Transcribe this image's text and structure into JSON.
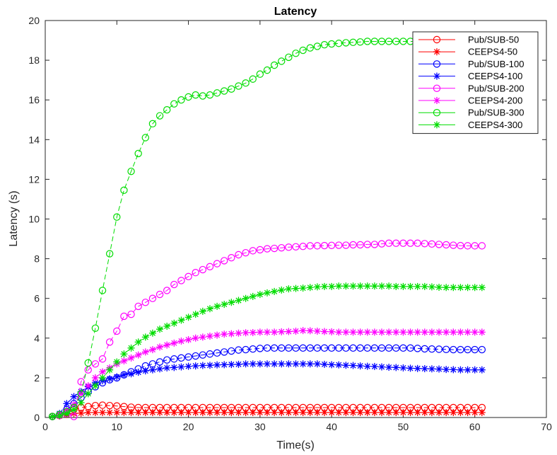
{
  "chart_data": {
    "type": "line",
    "title": "Latency",
    "xlabel": "Time(s)",
    "ylabel": "Latency (s)",
    "xlim": [
      0,
      70
    ],
    "ylim": [
      0,
      20
    ],
    "xticks": [
      "0",
      "10",
      "20",
      "30",
      "40",
      "50",
      "60",
      "70"
    ],
    "yticks": [
      "0",
      "2",
      "4",
      "6",
      "8",
      "10",
      "12",
      "14",
      "16",
      "18",
      "20"
    ],
    "grid": false,
    "legend_position": "top-right",
    "x": [
      1,
      2,
      3,
      4,
      5,
      6,
      7,
      8,
      9,
      10,
      11,
      12,
      13,
      14,
      15,
      16,
      17,
      18,
      19,
      20,
      21,
      22,
      23,
      24,
      25,
      26,
      27,
      28,
      29,
      30,
      31,
      32,
      33,
      34,
      35,
      36,
      37,
      38,
      39,
      40,
      41,
      42,
      43,
      44,
      45,
      46,
      47,
      48,
      49,
      50,
      51,
      52,
      53,
      54,
      55,
      56,
      57,
      58,
      59,
      60,
      61
    ],
    "series": [
      {
        "name": "Pub/SUB-50",
        "color": "#ff0000",
        "marker": "circle",
        "line": "dashed",
        "values": [
          0.05,
          0.1,
          0.25,
          0.4,
          0.5,
          0.55,
          0.6,
          0.62,
          0.6,
          0.58,
          0.55,
          0.52,
          0.5,
          0.5,
          0.5,
          0.5,
          0.5,
          0.5,
          0.5,
          0.5,
          0.5,
          0.5,
          0.5,
          0.5,
          0.5,
          0.5,
          0.5,
          0.5,
          0.5,
          0.5,
          0.5,
          0.5,
          0.5,
          0.5,
          0.5,
          0.5,
          0.5,
          0.5,
          0.5,
          0.5,
          0.5,
          0.5,
          0.5,
          0.5,
          0.5,
          0.5,
          0.5,
          0.5,
          0.5,
          0.5,
          0.5,
          0.5,
          0.5,
          0.5,
          0.5,
          0.5,
          0.5,
          0.5,
          0.5,
          0.5,
          0.5
        ]
      },
      {
        "name": "CEEPS4-50",
        "color": "#ff0000",
        "marker": "asterisk",
        "line": "dashed",
        "values": [
          0.05,
          0.08,
          0.15,
          0.2,
          0.22,
          0.25,
          0.25,
          0.25,
          0.25,
          0.25,
          0.25,
          0.25,
          0.25,
          0.25,
          0.25,
          0.25,
          0.25,
          0.25,
          0.25,
          0.25,
          0.25,
          0.25,
          0.25,
          0.25,
          0.25,
          0.25,
          0.25,
          0.25,
          0.25,
          0.25,
          0.25,
          0.25,
          0.25,
          0.25,
          0.25,
          0.25,
          0.25,
          0.25,
          0.25,
          0.25,
          0.25,
          0.25,
          0.25,
          0.25,
          0.25,
          0.25,
          0.25,
          0.25,
          0.25,
          0.25,
          0.25,
          0.25,
          0.25,
          0.25,
          0.25,
          0.25,
          0.25,
          0.25,
          0.25,
          0.25,
          0.25
        ]
      },
      {
        "name": "Pub/SUB-100",
        "color": "#0000ff",
        "marker": "circle",
        "line": "dashed",
        "values": [
          0.05,
          0.15,
          0.4,
          0.7,
          1.0,
          1.3,
          1.55,
          1.75,
          1.9,
          2.0,
          2.15,
          2.3,
          2.45,
          2.6,
          2.7,
          2.8,
          2.9,
          2.95,
          3.0,
          3.05,
          3.1,
          3.15,
          3.2,
          3.25,
          3.3,
          3.35,
          3.4,
          3.42,
          3.45,
          3.48,
          3.5,
          3.5,
          3.5,
          3.5,
          3.5,
          3.5,
          3.5,
          3.5,
          3.5,
          3.5,
          3.5,
          3.5,
          3.5,
          3.5,
          3.5,
          3.5,
          3.5,
          3.5,
          3.5,
          3.5,
          3.5,
          3.48,
          3.46,
          3.45,
          3.44,
          3.43,
          3.42,
          3.42,
          3.42,
          3.42,
          3.42
        ]
      },
      {
        "name": "CEEPS4-100",
        "color": "#0000ff",
        "marker": "asterisk",
        "line": "dashed",
        "values": [
          0.05,
          0.2,
          0.7,
          1.05,
          1.3,
          1.55,
          1.75,
          1.85,
          1.95,
          2.05,
          2.15,
          2.2,
          2.28,
          2.35,
          2.4,
          2.45,
          2.5,
          2.52,
          2.55,
          2.58,
          2.6,
          2.62,
          2.63,
          2.65,
          2.66,
          2.67,
          2.68,
          2.7,
          2.7,
          2.7,
          2.7,
          2.7,
          2.7,
          2.7,
          2.7,
          2.7,
          2.7,
          2.7,
          2.68,
          2.66,
          2.65,
          2.63,
          2.62,
          2.6,
          2.58,
          2.57,
          2.55,
          2.53,
          2.52,
          2.5,
          2.48,
          2.47,
          2.46,
          2.45,
          2.44,
          2.42,
          2.41,
          2.4,
          2.4,
          2.4,
          2.4
        ]
      },
      {
        "name": "Pub/SUB-200",
        "color": "#ff00ff",
        "marker": "circle",
        "line": "dashed",
        "values": [
          0.05,
          0.1,
          0.2,
          0.05,
          1.8,
          2.4,
          2.7,
          2.95,
          3.8,
          4.35,
          5.1,
          5.2,
          5.6,
          5.8,
          6.0,
          6.2,
          6.4,
          6.7,
          6.9,
          7.1,
          7.3,
          7.45,
          7.6,
          7.75,
          7.9,
          8.05,
          8.2,
          8.3,
          8.4,
          8.45,
          8.5,
          8.52,
          8.55,
          8.58,
          8.6,
          8.62,
          8.65,
          8.65,
          8.66,
          8.67,
          8.68,
          8.68,
          8.7,
          8.7,
          8.72,
          8.72,
          8.75,
          8.78,
          8.78,
          8.78,
          8.78,
          8.78,
          8.76,
          8.74,
          8.72,
          8.7,
          8.68,
          8.66,
          8.65,
          8.65,
          8.65
        ]
      },
      {
        "name": "CEEPS4-200",
        "color": "#ff00ff",
        "marker": "asterisk",
        "line": "dashed",
        "values": [
          0.05,
          0.15,
          0.35,
          0.65,
          1.2,
          1.6,
          2.0,
          2.3,
          2.5,
          2.7,
          2.85,
          3.0,
          3.15,
          3.3,
          3.42,
          3.55,
          3.65,
          3.75,
          3.85,
          3.92,
          4.0,
          4.05,
          4.1,
          4.15,
          4.2,
          4.22,
          4.25,
          4.27,
          4.28,
          4.3,
          4.3,
          4.3,
          4.32,
          4.33,
          4.35,
          4.38,
          4.37,
          4.35,
          4.33,
          4.32,
          4.3,
          4.3,
          4.3,
          4.3,
          4.3,
          4.3,
          4.3,
          4.3,
          4.3,
          4.3,
          4.3,
          4.3,
          4.3,
          4.3,
          4.3,
          4.3,
          4.3,
          4.3,
          4.3,
          4.3,
          4.3
        ]
      },
      {
        "name": "Pub/SUB-300",
        "color": "#00dd00",
        "marker": "circle",
        "line": "dashed",
        "values": [
          0.05,
          0.15,
          0.3,
          0.5,
          1.2,
          2.75,
          4.5,
          6.4,
          8.25,
          10.1,
          11.45,
          12.4,
          13.3,
          14.1,
          14.8,
          15.2,
          15.5,
          15.8,
          16.0,
          16.15,
          16.25,
          16.2,
          16.25,
          16.35,
          16.45,
          16.55,
          16.7,
          16.85,
          17.05,
          17.3,
          17.5,
          17.75,
          17.95,
          18.15,
          18.35,
          18.5,
          18.62,
          18.7,
          18.78,
          18.82,
          18.85,
          18.88,
          18.9,
          18.92,
          18.95,
          18.95,
          18.95,
          18.95,
          18.95,
          18.95,
          18.95,
          18.95,
          18.95,
          18.95,
          18.95,
          18.95,
          18.95,
          18.95,
          18.95,
          18.95,
          18.95
        ]
      },
      {
        "name": "CEEPS4-300",
        "color": "#00dd00",
        "marker": "asterisk",
        "line": "dashed",
        "values": [
          0.05,
          0.1,
          0.2,
          0.4,
          0.75,
          1.2,
          1.6,
          2.0,
          2.4,
          2.8,
          3.2,
          3.5,
          3.8,
          4.05,
          4.25,
          4.45,
          4.6,
          4.75,
          4.9,
          5.05,
          5.2,
          5.35,
          5.48,
          5.6,
          5.7,
          5.8,
          5.9,
          6.0,
          6.1,
          6.2,
          6.28,
          6.35,
          6.42,
          6.48,
          6.5,
          6.52,
          6.55,
          6.58,
          6.6,
          6.6,
          6.62,
          6.62,
          6.62,
          6.62,
          6.62,
          6.62,
          6.62,
          6.62,
          6.6,
          6.6,
          6.6,
          6.6,
          6.6,
          6.58,
          6.56,
          6.55,
          6.55,
          6.55,
          6.55,
          6.55,
          6.55
        ]
      }
    ]
  }
}
